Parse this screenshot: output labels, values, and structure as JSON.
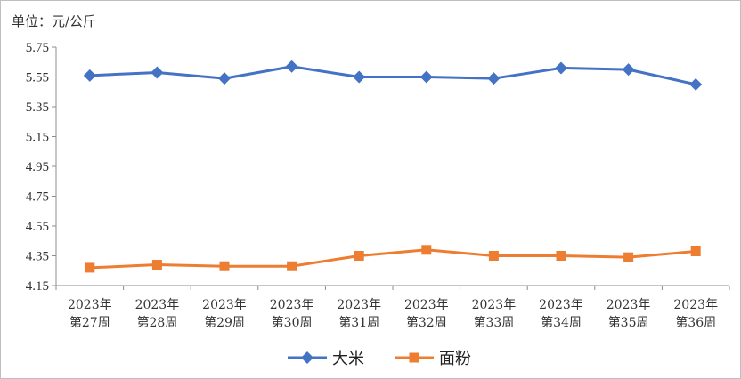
{
  "unit_label": "单位：元/公斤",
  "chart_data": {
    "type": "line",
    "categories": [
      [
        "2023年",
        "第27周"
      ],
      [
        "2023年",
        "第28周"
      ],
      [
        "2023年",
        "第29周"
      ],
      [
        "2023年",
        "第30周"
      ],
      [
        "2023年",
        "第31周"
      ],
      [
        "2023年",
        "第32周"
      ],
      [
        "2023年",
        "第33周"
      ],
      [
        "2023年",
        "第34周"
      ],
      [
        "2023年",
        "第35周"
      ],
      [
        "2023年",
        "第36周"
      ]
    ],
    "y_ticks": [
      "5.75",
      "5.55",
      "5.35",
      "5.15",
      "4.95",
      "4.75",
      "4.55",
      "4.35",
      "4.15"
    ],
    "ylim": [
      4.15,
      5.75
    ],
    "grid": false,
    "legend_position": "bottom",
    "series": [
      {
        "name": "大米",
        "color": "#4472C4",
        "marker": "diamond",
        "values": [
          5.56,
          5.58,
          5.54,
          5.62,
          5.55,
          5.55,
          5.54,
          5.61,
          5.6,
          5.5
        ]
      },
      {
        "name": "面粉",
        "color": "#ED7D31",
        "marker": "square",
        "values": [
          4.27,
          4.29,
          4.28,
          4.28,
          4.35,
          4.39,
          4.35,
          4.35,
          4.34,
          4.38
        ]
      }
    ]
  }
}
